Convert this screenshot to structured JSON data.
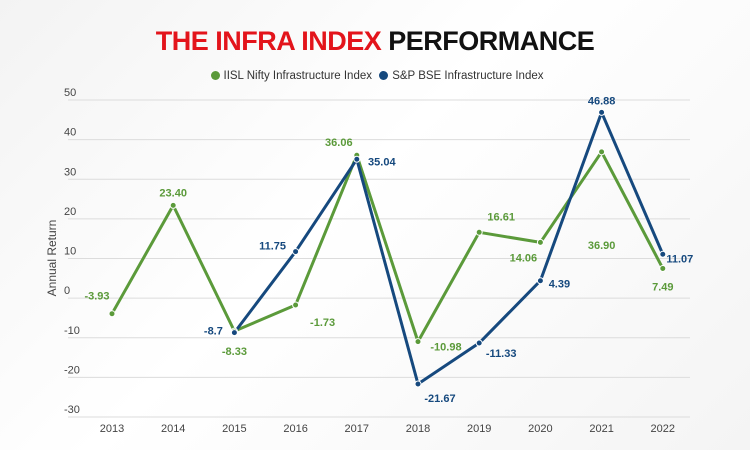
{
  "title": {
    "part1": "THE INFRA INDEX",
    "part2": "PERFORMANCE",
    "part1_color": "#e3141b"
  },
  "chart_data": {
    "type": "line",
    "title": "THE INFRA INDEX PERFORMANCE",
    "xlabel": "",
    "ylabel": "Annual Return",
    "categories": [
      "2013",
      "2014",
      "2015",
      "2016",
      "2017",
      "2018",
      "2019",
      "2020",
      "2021",
      "2022"
    ],
    "ylim": [
      -30,
      50
    ],
    "yticks": [
      50,
      40,
      30,
      20,
      10,
      0,
      -10,
      -20,
      -30
    ],
    "grid": true,
    "legend_position": "top-center",
    "series": [
      {
        "name": "IISL Nifty Infrastructure Index",
        "color": "#5b9a3a",
        "values": [
          -3.93,
          23.4,
          -8.33,
          -1.73,
          36.06,
          -10.98,
          16.61,
          14.06,
          36.9,
          7.49
        ],
        "labels": [
          "-3.93",
          "23.40",
          "-8.33",
          "-1.73",
          "36.06",
          "-10.98",
          "16.61",
          "14.06",
          "36.90",
          "7.49"
        ]
      },
      {
        "name": "S&P BSE Infrastructure Index",
        "color": "#16497e",
        "values": [
          null,
          null,
          -8.7,
          11.75,
          35.04,
          -21.67,
          -11.33,
          4.39,
          46.88,
          11.07
        ],
        "labels": [
          null,
          null,
          "-8.7",
          "11.75",
          "35.04",
          "-21.67",
          "-11.33",
          "4.39",
          "46.88",
          "11.07"
        ]
      }
    ]
  }
}
